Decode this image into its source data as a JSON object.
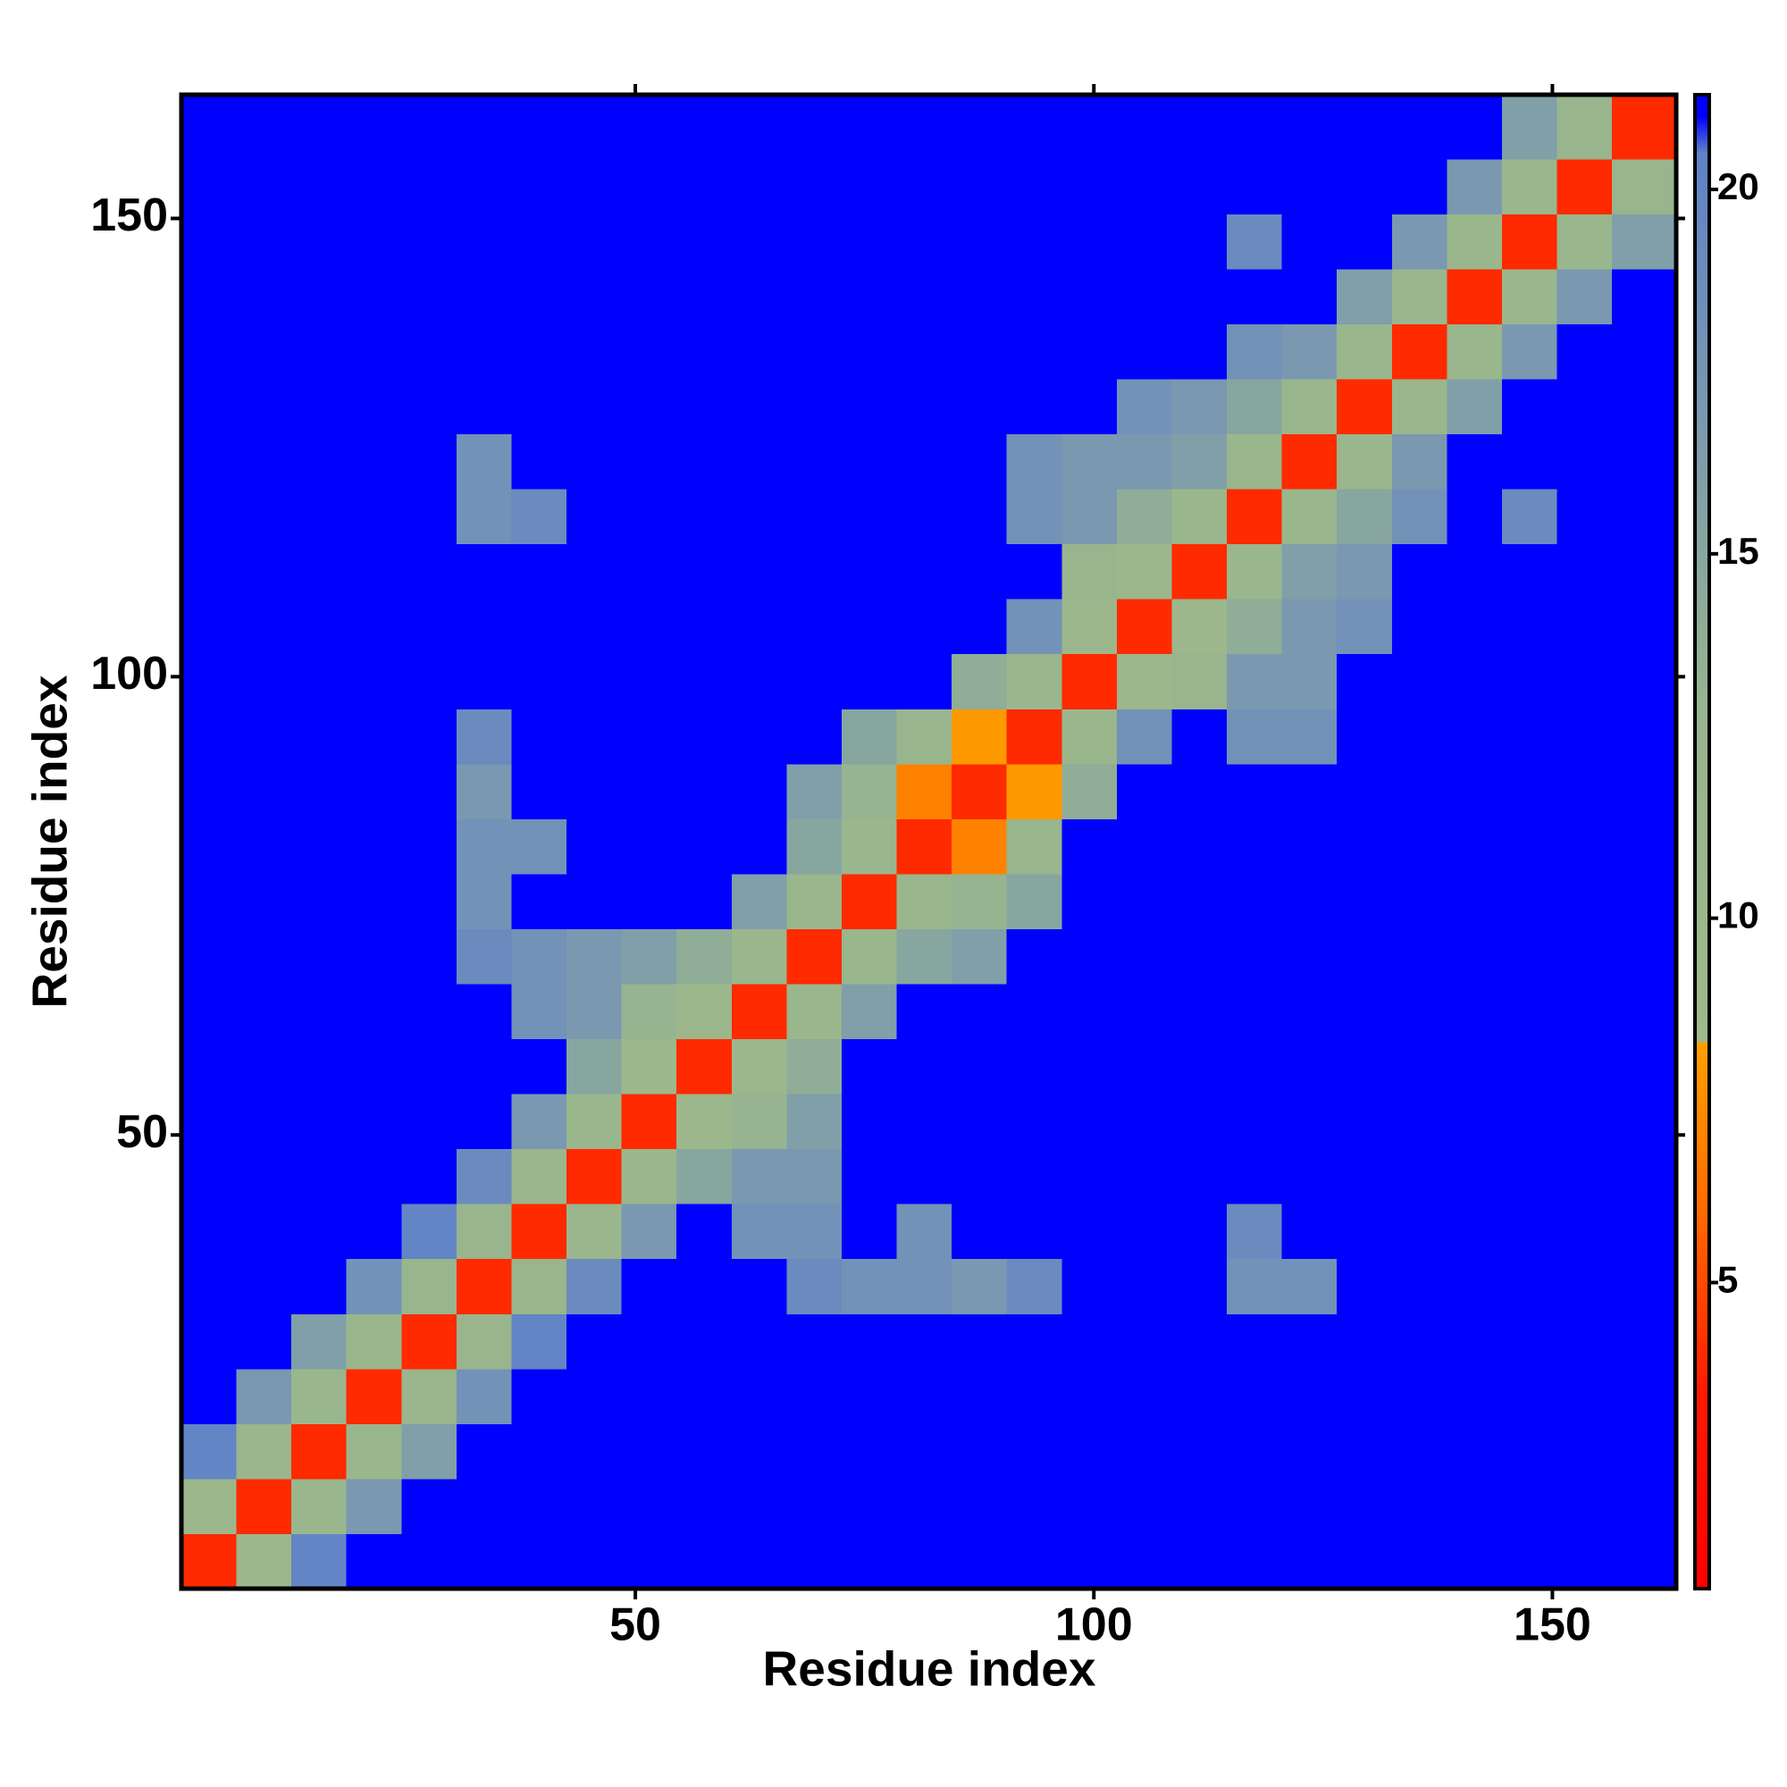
{
  "chart_data": {
    "type": "heatmap",
    "x_label": "Residue index",
    "y_label": "Residue index",
    "x_bins": [
      0.5,
      6.5,
      12.5,
      18.5,
      24.5,
      30.5,
      36.5,
      42.5,
      48.5,
      54.5,
      60.5,
      66.5,
      72.5,
      78.5,
      84.5,
      90.5,
      96.5,
      102.5,
      108.5,
      114.5,
      120.5,
      126.5,
      132.5,
      138.5,
      144.5,
      150.5,
      156.5,
      163.5
    ],
    "y_bins": [
      0.5,
      6.5,
      12.5,
      18.5,
      24.5,
      30.5,
      36.5,
      42.5,
      48.5,
      54.5,
      60.5,
      66.5,
      72.5,
      78.5,
      84.5,
      90.5,
      96.5,
      102.5,
      108.5,
      114.5,
      120.5,
      126.5,
      132.5,
      138.5,
      144.5,
      150.5,
      156.5,
      163.5
    ],
    "z": [
      [
        4,
        10,
        20,
        21,
        21,
        21,
        21,
        21,
        21,
        21,
        21,
        21,
        21,
        21,
        21,
        21,
        21,
        21,
        21,
        21,
        21,
        21,
        21,
        21,
        21,
        21,
        21
      ],
      [
        10,
        4,
        11,
        17,
        21,
        21,
        21,
        21,
        21,
        21,
        21,
        21,
        21,
        21,
        21,
        21,
        21,
        21,
        21,
        21,
        21,
        21,
        21,
        21,
        21,
        21,
        21
      ],
      [
        20,
        11,
        4,
        11,
        16,
        21,
        21,
        21,
        21,
        21,
        21,
        21,
        21,
        21,
        21,
        21,
        21,
        21,
        21,
        21,
        21,
        21,
        21,
        21,
        21,
        21,
        21
      ],
      [
        21,
        17,
        11,
        4,
        11,
        18,
        21,
        21,
        21,
        21,
        21,
        21,
        21,
        21,
        21,
        21,
        21,
        21,
        21,
        21,
        21,
        21,
        21,
        21,
        21,
        21,
        21
      ],
      [
        21,
        21,
        16,
        11,
        4,
        12,
        20,
        21,
        21,
        21,
        21,
        21,
        21,
        21,
        21,
        21,
        21,
        21,
        21,
        21,
        21,
        21,
        21,
        21,
        21,
        21,
        21
      ],
      [
        21,
        21,
        21,
        18,
        12,
        4,
        12,
        19,
        21,
        21,
        21,
        19,
        18,
        18,
        17,
        19,
        21,
        21,
        21,
        18,
        18,
        21,
        21,
        21,
        21,
        21,
        21
      ],
      [
        21,
        21,
        21,
        21,
        20,
        12,
        4,
        11,
        17,
        21,
        18,
        18,
        21,
        18,
        21,
        21,
        21,
        21,
        21,
        19,
        21,
        21,
        21,
        21,
        21,
        21,
        21
      ],
      [
        21,
        21,
        21,
        21,
        21,
        19,
        11,
        4,
        11,
        15,
        17,
        17,
        21,
        21,
        21,
        21,
        21,
        21,
        21,
        21,
        21,
        21,
        21,
        21,
        21,
        21,
        21
      ],
      [
        21,
        21,
        21,
        21,
        21,
        21,
        17,
        11,
        4,
        10,
        13,
        16,
        21,
        21,
        21,
        21,
        21,
        21,
        21,
        21,
        21,
        21,
        21,
        21,
        21,
        21,
        21
      ],
      [
        21,
        21,
        21,
        21,
        21,
        21,
        21,
        15,
        10,
        4,
        10,
        14,
        21,
        21,
        21,
        21,
        21,
        21,
        21,
        21,
        21,
        21,
        21,
        21,
        21,
        21,
        21
      ],
      [
        21,
        21,
        21,
        21,
        21,
        21,
        18,
        17,
        13,
        10,
        4,
        11,
        16,
        21,
        21,
        21,
        21,
        21,
        21,
        21,
        21,
        21,
        21,
        21,
        21,
        21,
        21
      ],
      [
        21,
        21,
        21,
        21,
        21,
        19,
        18,
        17,
        16,
        14,
        11,
        4,
        11,
        15,
        16,
        21,
        21,
        21,
        21,
        21,
        21,
        21,
        21,
        21,
        21,
        21,
        21
      ],
      [
        21,
        21,
        21,
        21,
        21,
        18,
        21,
        21,
        21,
        21,
        16,
        11,
        4,
        11,
        13,
        15,
        21,
        21,
        21,
        21,
        21,
        21,
        21,
        21,
        21,
        21,
        21
      ],
      [
        21,
        21,
        21,
        21,
        21,
        18,
        18,
        21,
        21,
        21,
        21,
        15,
        11,
        4,
        7,
        12,
        21,
        21,
        21,
        21,
        21,
        21,
        21,
        21,
        21,
        21,
        21
      ],
      [
        21,
        21,
        21,
        21,
        21,
        17,
        21,
        21,
        21,
        21,
        21,
        16,
        13,
        7,
        4,
        8,
        14,
        21,
        21,
        21,
        21,
        21,
        21,
        21,
        21,
        21,
        21
      ],
      [
        21,
        21,
        21,
        21,
        21,
        19,
        21,
        21,
        21,
        21,
        21,
        21,
        15,
        12,
        8,
        4,
        11,
        18,
        21,
        18,
        18,
        21,
        21,
        21,
        21,
        21,
        21
      ],
      [
        21,
        21,
        21,
        21,
        21,
        21,
        21,
        21,
        21,
        21,
        21,
        21,
        21,
        21,
        14,
        11,
        4,
        10,
        12,
        17,
        17,
        21,
        21,
        21,
        21,
        21,
        21
      ],
      [
        21,
        21,
        21,
        21,
        21,
        21,
        21,
        21,
        21,
        21,
        21,
        21,
        21,
        21,
        21,
        18,
        10,
        4,
        10,
        14,
        17,
        18,
        21,
        21,
        21,
        21,
        21
      ],
      [
        21,
        21,
        21,
        21,
        21,
        21,
        21,
        21,
        21,
        21,
        21,
        21,
        21,
        21,
        21,
        21,
        12,
        10,
        4,
        11,
        16,
        17,
        21,
        21,
        21,
        21,
        21
      ],
      [
        21,
        21,
        21,
        21,
        21,
        18,
        19,
        21,
        21,
        21,
        21,
        21,
        21,
        21,
        21,
        18,
        17,
        14,
        11,
        4,
        11,
        15,
        18,
        21,
        19,
        21,
        21
      ],
      [
        21,
        21,
        21,
        21,
        21,
        18,
        21,
        21,
        21,
        21,
        21,
        21,
        21,
        21,
        21,
        18,
        17,
        17,
        16,
        11,
        4,
        11,
        17,
        21,
        21,
        21,
        21
      ],
      [
        21,
        21,
        21,
        21,
        21,
        21,
        21,
        21,
        21,
        21,
        21,
        21,
        21,
        21,
        21,
        21,
        21,
        18,
        17,
        15,
        11,
        4,
        11,
        16,
        21,
        21,
        21
      ],
      [
        21,
        21,
        21,
        21,
        21,
        21,
        21,
        21,
        21,
        21,
        21,
        21,
        21,
        21,
        21,
        21,
        21,
        21,
        21,
        18,
        17,
        11,
        4,
        11,
        17,
        21,
        21
      ],
      [
        21,
        21,
        21,
        21,
        21,
        21,
        21,
        21,
        21,
        21,
        21,
        21,
        21,
        21,
        21,
        21,
        21,
        21,
        21,
        21,
        21,
        16,
        11,
        4,
        11,
        17,
        21
      ],
      [
        21,
        21,
        21,
        21,
        21,
        21,
        21,
        21,
        21,
        21,
        21,
        21,
        21,
        21,
        21,
        21,
        21,
        21,
        21,
        19,
        21,
        21,
        17,
        11,
        4,
        11,
        16
      ],
      [
        21,
        21,
        21,
        21,
        21,
        21,
        21,
        21,
        21,
        21,
        21,
        21,
        21,
        21,
        21,
        21,
        21,
        21,
        21,
        21,
        21,
        21,
        21,
        17,
        11,
        4,
        12
      ],
      [
        21,
        21,
        21,
        21,
        21,
        21,
        21,
        21,
        21,
        21,
        21,
        21,
        21,
        21,
        21,
        21,
        21,
        21,
        21,
        21,
        21,
        21,
        21,
        21,
        16,
        12,
        4
      ]
    ],
    "xlim": [
      0.5,
      163.5
    ],
    "ylim": [
      0.5,
      163.5
    ],
    "xticks": [
      50,
      100,
      150
    ],
    "yticks": [
      50,
      100,
      150
    ],
    "zlim": [
      0.8,
      21.3
    ],
    "zticks": [
      5,
      10,
      15,
      20
    ],
    "colorscale": [
      [
        0.8,
        "#ff0000"
      ],
      [
        3.5,
        "#ff1a00"
      ],
      [
        6,
        "#ff6a00"
      ],
      [
        8.3,
        "#ffa000"
      ],
      [
        8.3,
        "#9fb98a"
      ],
      [
        13,
        "#96b48f"
      ],
      [
        17,
        "#7a98b0"
      ],
      [
        20.5,
        "#5f82c8"
      ],
      [
        21,
        "#0000ff"
      ],
      [
        21.3,
        "#0000ff"
      ]
    ]
  }
}
